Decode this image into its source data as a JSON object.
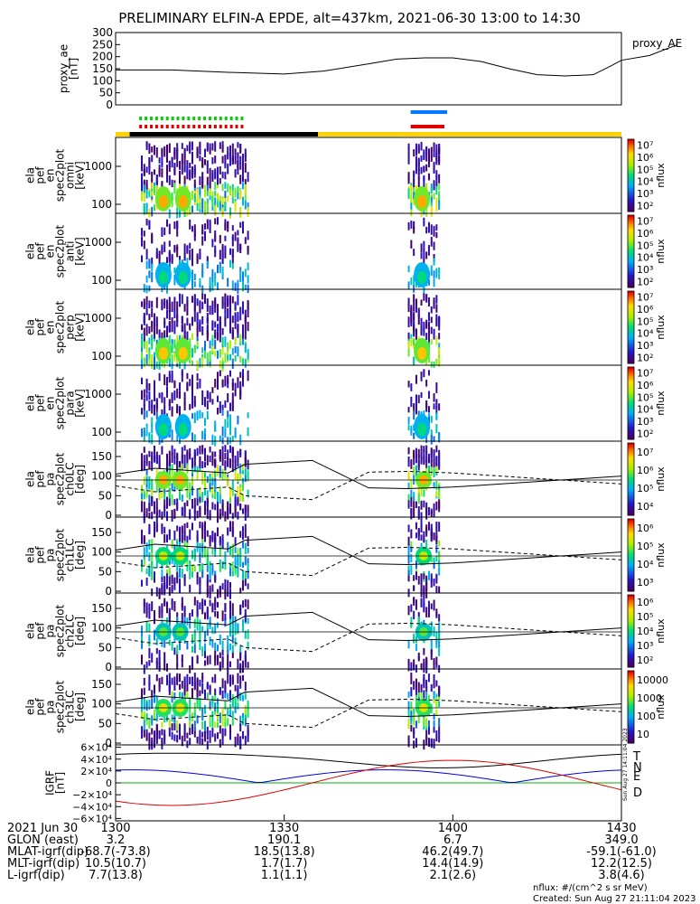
{
  "page": {
    "title": "PRELIMINARY ELFIN-A EPDE, alt=437km, 2021-06-30 13:00 to 14:30",
    "created": "Created: Sun Aug 27 21:11:04 2023",
    "units_note": "nflux: #/(cm^2 s sr MeV)",
    "vertical_stamp": "Sun Aug 27 14:11:04 2023"
  },
  "colors": {
    "sci_zone_bar": "#ffd200",
    "night_bar": "#000000",
    "green_marks": "#00d000",
    "red_marks": "#e00000",
    "blue_marks": "#0078ff",
    "igrf_T": "#000000",
    "igrf_N": "#0000dd",
    "igrf_E": "#00b000",
    "igrf_D": "#dd0000"
  },
  "chart_data": [
    {
      "id": "proxy_ae",
      "type": "line",
      "ylabel": "proxy_ae\n[nT]",
      "legend": "proxy_AE",
      "ylim": [
        0,
        300
      ],
      "yticks": [
        "0",
        "50",
        "100",
        "150",
        "200",
        "250",
        "300"
      ],
      "x_minutes": [
        0,
        10,
        20,
        30,
        37,
        45,
        50,
        55,
        60,
        65,
        70,
        75,
        80,
        85,
        88,
        90,
        95,
        100
      ],
      "values": [
        145,
        145,
        135,
        128,
        140,
        170,
        190,
        195,
        195,
        180,
        150,
        125,
        120,
        125,
        160,
        185,
        205,
        250
      ]
    },
    {
      "id": "omni",
      "type": "heatmap",
      "ylabel": "ela\npef\nen\nspec2plot\nomni\n[keV]",
      "yticks": [
        "100",
        "1000"
      ],
      "colorbar": {
        "label": "nflux",
        "ticks": [
          "10^2",
          "10^3",
          "10^4",
          "10^5",
          "10^6",
          "10^7"
        ],
        "scale": "log"
      }
    },
    {
      "id": "anti",
      "type": "heatmap",
      "ylabel": "ela\npef\nen\nspec2plot\nanti\n[keV]",
      "yticks": [
        "100",
        "1000"
      ],
      "colorbar": {
        "label": "nflux",
        "ticks": [
          "10^2",
          "10^3",
          "10^4",
          "10^5",
          "10^6",
          "10^7"
        ],
        "scale": "log"
      }
    },
    {
      "id": "perp",
      "type": "heatmap",
      "ylabel": "ela\npef\nen\nspec2plot\nperp\n[keV]",
      "yticks": [
        "100",
        "1000"
      ],
      "colorbar": {
        "label": "nflux",
        "ticks": [
          "10^2",
          "10^3",
          "10^4",
          "10^5",
          "10^6",
          "10^7"
        ],
        "scale": "log"
      }
    },
    {
      "id": "para",
      "type": "heatmap",
      "ylabel": "ela\npef\nen\nspec2plot\npara\n[keV]",
      "yticks": [
        "100",
        "1000"
      ],
      "colorbar": {
        "label": "nflux",
        "ticks": [
          "10^2",
          "10^3",
          "10^4",
          "10^5",
          "10^6",
          "10^7"
        ],
        "scale": "log"
      }
    },
    {
      "id": "ch0LC",
      "type": "heatmap",
      "ylabel": "ela\npef\npa\nspec2plot\nch0LC\n[deg]",
      "yticks": [
        "0",
        "50",
        "100",
        "150"
      ],
      "colorbar": {
        "label": "nflux",
        "ticks": [
          "10^4",
          "10^5",
          "10^6",
          "10^7"
        ],
        "scale": "log"
      }
    },
    {
      "id": "ch1LC",
      "type": "heatmap",
      "ylabel": "ela\npef\npa\nspec2plot\nch1LC\n[deg]",
      "yticks": [
        "0",
        "50",
        "100",
        "150"
      ],
      "colorbar": {
        "label": "nflux",
        "ticks": [
          "10^3",
          "10^4",
          "10^5",
          "10^6"
        ],
        "scale": "log"
      }
    },
    {
      "id": "ch2LC",
      "type": "heatmap",
      "ylabel": "ela\npef\npa\nspec2plot\nch2LC\n[deg]",
      "yticks": [
        "0",
        "50",
        "100",
        "150"
      ],
      "colorbar": {
        "label": "nflux",
        "ticks": [
          "10^2",
          "10^3",
          "10^4",
          "10^5",
          "10^6"
        ],
        "scale": "log"
      }
    },
    {
      "id": "ch3LC",
      "type": "heatmap",
      "ylabel": "ela\npef\npa\nspec2plot\nch3LC\n[deg]",
      "yticks": [
        "0",
        "50",
        "100",
        "150"
      ],
      "colorbar": {
        "label": "nflux",
        "ticks": [
          "10",
          "100",
          "1000",
          "10000"
        ],
        "scale": "log"
      }
    },
    {
      "id": "igrf",
      "type": "line",
      "ylabel": "IGRF\n[nT]",
      "yticks": [
        "−6×10⁴",
        "−4×10⁴",
        "−2×10⁴",
        "0",
        "2×10⁴",
        "4×10⁴",
        "6×10⁴"
      ],
      "legend": [
        "T",
        "N",
        "E",
        "D"
      ]
    }
  ],
  "xaxis": {
    "tick_labels": [
      "1300",
      "1330",
      "1400",
      "1430"
    ],
    "rows": [
      {
        "label": "2021 Jun 30",
        "values": [
          "1300",
          "1330",
          "1400",
          "1430"
        ]
      },
      {
        "label": "GLON (east)",
        "values": [
          "3.2",
          "190.1",
          "6.7",
          "349.0"
        ]
      },
      {
        "label": "MLAT-igrf(dip)",
        "values": [
          "-68.7(-73.8)",
          "18.5(13.8)",
          "46.2(49.7)",
          "-59.1(-61.0)"
        ]
      },
      {
        "label": "MLT-igrf(dip)",
        "values": [
          "10.5(10.7)",
          "1.7(1.7)",
          "14.4(14.9)",
          "12.2(12.5)"
        ]
      },
      {
        "label": "L-igrf(dip)",
        "values": [
          "7.7(13.8)",
          "1.1(1.1)",
          "2.1(2.6)",
          "3.8(4.6)"
        ]
      }
    ]
  }
}
